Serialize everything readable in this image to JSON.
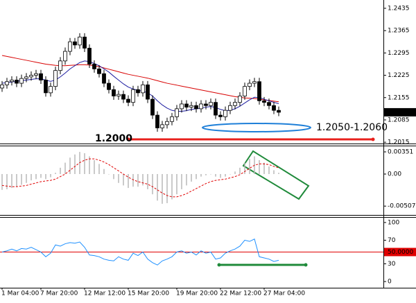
{
  "chart_data": [
    {
      "type": "candlestick",
      "categories": [
        "1 Mar 04:00",
        null,
        null,
        null,
        null,
        null,
        null,
        null,
        "7 Mar 20:00",
        null,
        null,
        null,
        null,
        null,
        null,
        null,
        null,
        "12 Mar 12:00",
        null,
        null,
        null,
        null,
        null,
        null,
        null,
        null,
        "15 Mar 20:00",
        null,
        null,
        null,
        null,
        null,
        null,
        null,
        null,
        null,
        "19 Mar 20:00",
        null,
        null,
        null,
        null,
        null,
        null,
        null,
        null,
        "22 Mar 12:00",
        null,
        null,
        null,
        null,
        null,
        null,
        null,
        null,
        "27 Mar 04:00",
        null,
        null,
        null
      ],
      "open": [
        1.2185,
        1.2195,
        1.2205,
        1.221,
        1.22,
        1.2215,
        1.222,
        1.2225,
        1.223,
        1.221,
        1.217,
        1.219,
        1.224,
        1.227,
        1.23,
        1.233,
        1.232,
        1.2345,
        1.231,
        1.226,
        1.2245,
        1.223,
        1.22,
        1.218,
        1.216,
        1.2165,
        1.215,
        1.214,
        1.218,
        1.217,
        1.2195,
        1.215,
        1.21,
        1.206,
        1.207,
        1.208,
        1.2095,
        1.212,
        1.2135,
        1.2125,
        1.213,
        1.212,
        1.2135,
        1.213,
        1.214,
        1.21,
        1.2095,
        1.2115,
        1.213,
        1.214,
        1.216,
        1.219,
        1.22,
        1.2205,
        1.2145,
        1.214,
        1.213,
        1.2115
      ],
      "high": [
        1.2207,
        1.2217,
        1.2222,
        1.2222,
        1.2227,
        1.2232,
        1.2237,
        1.2242,
        1.2242,
        1.2222,
        1.2202,
        1.2252,
        1.2282,
        1.2312,
        1.2342,
        1.2342,
        1.2357,
        1.2357,
        1.2322,
        1.2272,
        1.2257,
        1.2242,
        1.2212,
        1.2192,
        1.2177,
        1.2177,
        1.2162,
        1.2192,
        1.2192,
        1.2207,
        1.2207,
        1.2162,
        1.2112,
        1.2082,
        1.2092,
        1.2107,
        1.2132,
        1.2147,
        1.2147,
        1.2142,
        1.2142,
        1.2147,
        1.2147,
        1.2152,
        1.2152,
        1.2112,
        1.2127,
        1.2142,
        1.2152,
        1.2172,
        1.2202,
        1.2212,
        1.2217,
        1.2217,
        1.2157,
        1.2152,
        1.2142,
        1.2127
      ],
      "low": [
        1.2173,
        1.2183,
        1.2193,
        1.2188,
        1.2188,
        1.2203,
        1.2208,
        1.2213,
        1.2198,
        1.2158,
        1.2158,
        1.2178,
        1.2228,
        1.2258,
        1.2288,
        1.2308,
        1.2308,
        1.2298,
        1.2248,
        1.2233,
        1.2218,
        1.2188,
        1.2168,
        1.2148,
        1.2148,
        1.2138,
        1.2128,
        1.2128,
        1.2158,
        1.2158,
        1.2138,
        1.2088,
        1.2048,
        1.2048,
        1.2058,
        1.2068,
        1.2083,
        1.2108,
        1.2113,
        1.2113,
        1.2108,
        1.2108,
        1.2118,
        1.2118,
        1.2088,
        1.2083,
        1.2083,
        1.2103,
        1.2118,
        1.2128,
        1.2148,
        1.2178,
        1.2188,
        1.2133,
        1.2128,
        1.2118,
        1.2103,
        1.2097
      ],
      "close": [
        1.2195,
        1.2205,
        1.221,
        1.22,
        1.2215,
        1.222,
        1.2225,
        1.223,
        1.221,
        1.217,
        1.219,
        1.224,
        1.227,
        1.23,
        1.233,
        1.232,
        1.2345,
        1.231,
        1.226,
        1.2245,
        1.223,
        1.22,
        1.218,
        1.216,
        1.2165,
        1.215,
        1.214,
        1.218,
        1.217,
        1.2195,
        1.215,
        1.21,
        1.206,
        1.207,
        1.208,
        1.2095,
        1.212,
        1.2135,
        1.2125,
        1.213,
        1.212,
        1.2135,
        1.213,
        1.214,
        1.21,
        1.2095,
        1.2115,
        1.213,
        1.214,
        1.216,
        1.219,
        1.22,
        1.2205,
        1.2145,
        1.214,
        1.213,
        1.2115,
        1.2109
      ],
      "color_up": "#ffffff",
      "color_down": "#000000",
      "moving_averages": [
        {
          "color": "#d80000",
          "values": [
            1.2287,
            1.2284,
            1.2281,
            1.2278,
            1.2275,
            1.2272,
            1.2269,
            1.2266,
            1.2263,
            1.226,
            1.2258,
            1.2256,
            1.2255,
            1.2255,
            1.2256,
            1.2257,
            1.2258,
            1.2258,
            1.2257,
            1.2255,
            1.2252,
            1.2248,
            1.2244,
            1.224,
            1.2236,
            1.2232,
            1.2228,
            1.2225,
            1.2222,
            1.2219,
            1.2216,
            1.2212,
            1.2208,
            1.2204,
            1.22,
            1.2197,
            1.2194,
            1.2191,
            1.2188,
            1.2185,
            1.2182,
            1.2179,
            1.2176,
            1.2173,
            1.217,
            1.2167,
            1.2164,
            1.2161,
            1.2158,
            1.2156,
            1.2154,
            1.2153,
            1.2152,
            1.215,
            1.2148,
            1.2146,
            1.2144,
            1.2142
          ]
        },
        {
          "color": "#1c1ca0",
          "values": [
            1.22,
            1.2202,
            1.2204,
            1.2206,
            1.2208,
            1.221,
            1.2212,
            1.2214,
            1.2214,
            1.221,
            1.2206,
            1.221,
            1.222,
            1.2232,
            1.2245,
            1.2255,
            1.2265,
            1.227,
            1.2268,
            1.2262,
            1.2255,
            1.2245,
            1.2235,
            1.2222,
            1.221,
            1.2198,
            1.2188,
            1.2182,
            1.2178,
            1.2175,
            1.217,
            1.216,
            1.2145,
            1.2132,
            1.2122,
            1.2115,
            1.2112,
            1.2112,
            1.2114,
            1.2118,
            1.212,
            1.2122,
            1.2125,
            1.2127,
            1.2124,
            1.2118,
            1.2114,
            1.2115,
            1.212,
            1.2128,
            1.2138,
            1.2148,
            1.2156,
            1.2155,
            1.215,
            1.2145,
            1.214,
            1.2136
          ]
        }
      ],
      "ylim": [
        1.2011,
        1.2461
      ],
      "yticks": [
        1.2435,
        1.2365,
        1.2295,
        1.2225,
        1.2155,
        1.2085,
        1.2015
      ],
      "annotations": [
        {
          "text": "1.2050-1.2060",
          "color": "#1e7fd8"
        },
        {
          "text": "1.2000",
          "color": "#e8201c"
        }
      ]
    },
    {
      "type": "macd",
      "histogram": [
        -0.0025,
        -0.0024,
        -0.0022,
        -0.002,
        -0.0017,
        -0.0014,
        -0.001,
        -0.0008,
        -0.0006,
        -0.0008,
        -0.0005,
        0.0002,
        0.001,
        0.0018,
        0.0026,
        0.0031,
        0.0035,
        0.0033,
        0.0028,
        0.0022,
        0.0016,
        0.0008,
        0.0,
        -0.0008,
        -0.0014,
        -0.0018,
        -0.0022,
        -0.002,
        -0.002,
        -0.0018,
        -0.0024,
        -0.0032,
        -0.0042,
        -0.0047,
        -0.0046,
        -0.004,
        -0.0032,
        -0.0024,
        -0.0018,
        -0.0012,
        -0.0008,
        -0.0004,
        -0.0002,
        0.0,
        -0.0004,
        -0.0006,
        -0.0004,
        0.0,
        0.0004,
        0.001,
        0.0018,
        0.0024,
        0.0028,
        0.0022,
        0.0018,
        0.0012,
        0.0006,
        0.0002
      ],
      "signal": [
        -0.0018,
        -0.0019,
        -0.002,
        -0.002,
        -0.0019,
        -0.0018,
        -0.0016,
        -0.0014,
        -0.0012,
        -0.0011,
        -0.001,
        -0.0008,
        -0.0004,
        0.0,
        0.0006,
        0.0012,
        0.0018,
        0.0022,
        0.0024,
        0.0024,
        0.0022,
        0.0019,
        0.0015,
        0.001,
        0.0005,
        0.0,
        -0.0005,
        -0.0009,
        -0.0012,
        -0.0014,
        -0.0016,
        -0.002,
        -0.0025,
        -0.003,
        -0.0034,
        -0.0036,
        -0.0036,
        -0.0034,
        -0.0031,
        -0.0027,
        -0.0023,
        -0.0019,
        -0.0015,
        -0.0012,
        -0.001,
        -0.0009,
        -0.0008,
        -0.0006,
        -0.0004,
        -0.0001,
        0.0004,
        0.0009,
        0.0014,
        0.0016,
        0.0016,
        0.0015,
        0.0012,
        0.001
      ],
      "histogram_color": "#b8b8b8",
      "signal_color": "#e00000",
      "ylim": [
        -0.00647,
        0.00439
      ],
      "yticks": [
        {
          "value": 0.00351,
          "label": "0.00351"
        },
        {
          "value": 0,
          "label": "0.00"
        },
        {
          "value": -0.00507,
          "label": "-0.00507"
        }
      ]
    },
    {
      "type": "rsi",
      "values": [
        50,
        52,
        55,
        52,
        56,
        55,
        58,
        54,
        50,
        42,
        48,
        62,
        60,
        64,
        66,
        65,
        67,
        58,
        45,
        44,
        42,
        38,
        36,
        35,
        42,
        38,
        36,
        48,
        44,
        50,
        38,
        32,
        28,
        35,
        38,
        42,
        50,
        52,
        48,
        50,
        45,
        52,
        48,
        50,
        38,
        40,
        48,
        52,
        55,
        60,
        70,
        68,
        72,
        42,
        40,
        38,
        34,
        36
      ],
      "color": "#1e90ff",
      "ylim": [
        -10.5,
        108.1
      ],
      "yticks": [
        100,
        70,
        30,
        0
      ],
      "levels": [
        {
          "value": 50,
          "label": "50.0000",
          "color": "#e00000"
        }
      ]
    }
  ]
}
